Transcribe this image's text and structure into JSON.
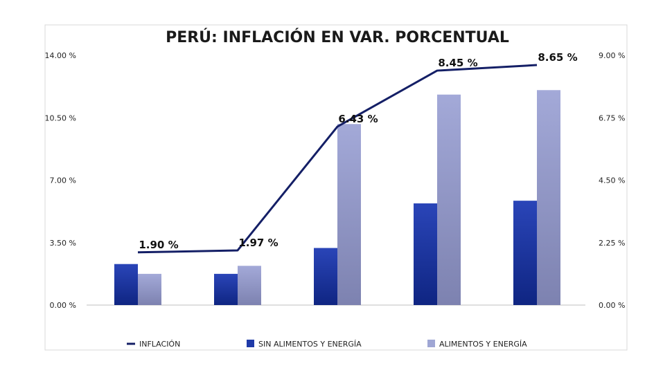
{
  "chart_data": {
    "type": "bar",
    "title": "PERÚ: INFLACIÓN EN VAR. PORCENTUAL",
    "categories": [
      "",
      "",
      "",
      "",
      ""
    ],
    "series": [
      {
        "name": "SIN ALIMENTOS Y ENERGÍA",
        "kind": "bar",
        "axis": "left",
        "color": "#1f3aa8",
        "values": [
          2.3,
          1.75,
          3.2,
          5.7,
          5.85
        ]
      },
      {
        "name": "ALIMENTOS Y ENERGÍA",
        "kind": "bar",
        "axis": "left",
        "color": "#9fa6d4",
        "values": [
          1.75,
          2.2,
          10.15,
          11.8,
          12.05
        ]
      },
      {
        "name": "INFLACIÓN",
        "kind": "line",
        "axis": "right",
        "color": "#141f66",
        "values": [
          1.9,
          1.97,
          6.43,
          8.45,
          8.65
        ],
        "labels": [
          "1.90 %",
          "1.97 %",
          "6.43 %",
          "8.45 %",
          "8.65 %"
        ]
      }
    ],
    "y_left": {
      "ylim": [
        0,
        14
      ],
      "ticks": [
        0,
        3.5,
        7,
        10.5,
        14
      ],
      "tick_labels": [
        "0.00 %",
        "3.50 %",
        "7.00 %",
        "10.50 %",
        "14.00 %"
      ]
    },
    "y_right": {
      "ylim": [
        0,
        9
      ],
      "ticks": [
        0,
        2.25,
        4.5,
        6.75,
        9
      ],
      "tick_labels": [
        "0.00 %",
        "2.25 %",
        "4.50 %",
        "6.75 %",
        "9.00 %"
      ]
    },
    "grid": false,
    "legend": {
      "position": "bottom",
      "items": [
        "INFLACIÓN",
        "SIN ALIMENTOS Y ENERGÍA",
        "ALIMENTOS Y ENERGÍA"
      ]
    }
  }
}
